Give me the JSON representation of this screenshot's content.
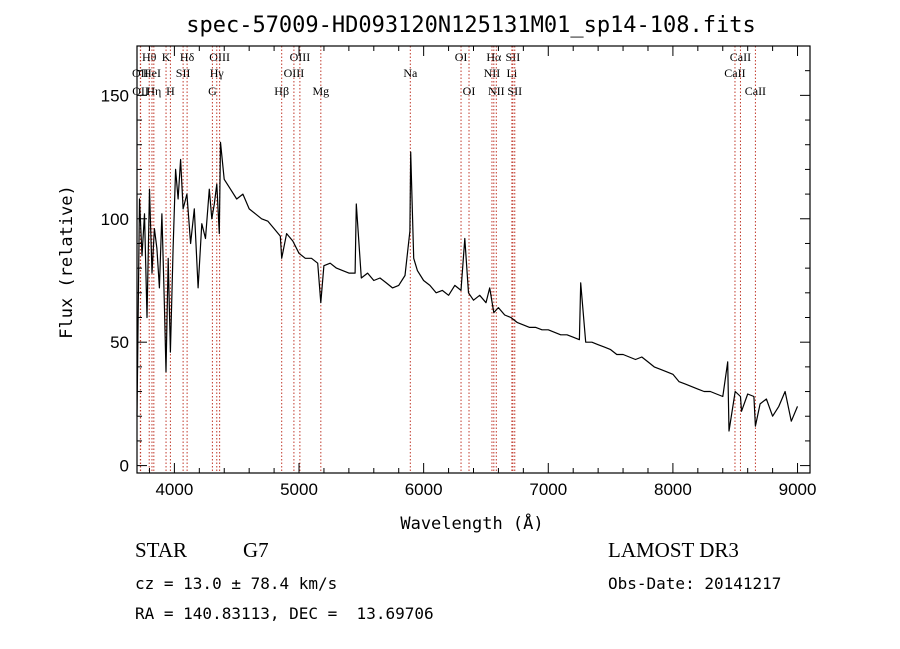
{
  "chart_data": {
    "type": "line",
    "title": "spec-57009-HD093120N125131M01_sp14-108.fits",
    "xlabel": "Wavelength (Å)",
    "ylabel": "Flux (relative)",
    "xlim": [
      3700,
      9100
    ],
    "ylim": [
      -3,
      170
    ],
    "xticks": [
      4000,
      5000,
      6000,
      7000,
      8000,
      9000
    ],
    "yticks": [
      0,
      50,
      100,
      150
    ],
    "series": [
      {
        "name": "spectrum",
        "x": [
          3700,
          3720,
          3740,
          3760,
          3780,
          3800,
          3820,
          3840,
          3860,
          3880,
          3900,
          3920,
          3933,
          3950,
          3968,
          3990,
          4010,
          4030,
          4050,
          4070,
          4100,
          4130,
          4160,
          4190,
          4220,
          4250,
          4280,
          4300,
          4320,
          4340,
          4360,
          4370,
          4400,
          4450,
          4500,
          4550,
          4600,
          4650,
          4700,
          4750,
          4800,
          4850,
          4861,
          4900,
          4950,
          5000,
          5050,
          5100,
          5150,
          5175,
          5200,
          5250,
          5300,
          5350,
          5400,
          5450,
          5460,
          5500,
          5550,
          5600,
          5650,
          5700,
          5750,
          5800,
          5850,
          5890,
          5896,
          5920,
          5950,
          6000,
          6050,
          6100,
          6150,
          6200,
          6250,
          6300,
          6330,
          6360,
          6400,
          6450,
          6500,
          6530,
          6563,
          6600,
          6650,
          6700,
          6750,
          6800,
          6850,
          6900,
          6950,
          7000,
          7050,
          7100,
          7150,
          7200,
          7250,
          7260,
          7300,
          7350,
          7400,
          7450,
          7500,
          7550,
          7600,
          7650,
          7700,
          7750,
          7800,
          7850,
          7900,
          7950,
          8000,
          8050,
          8100,
          8150,
          8200,
          8250,
          8300,
          8350,
          8400,
          8440,
          8450,
          8500,
          8542,
          8550,
          8600,
          8650,
          8662,
          8700,
          8750,
          8800,
          8850,
          8900,
          8950,
          9000
        ],
        "y": [
          20,
          108,
          85,
          102,
          60,
          112,
          78,
          96,
          88,
          72,
          102,
          65,
          38,
          84,
          46,
          88,
          120,
          108,
          124,
          104,
          110,
          90,
          104,
          72,
          98,
          92,
          112,
          100,
          106,
          114,
          94,
          131,
          116,
          112,
          108,
          110,
          104,
          102,
          100,
          99,
          96,
          93,
          84,
          94,
          91,
          86,
          84,
          84,
          82,
          66,
          81,
          82,
          80,
          79,
          78,
          78,
          106,
          76,
          78,
          75,
          76,
          74,
          72,
          73,
          77,
          95,
          127,
          84,
          79,
          75,
          73,
          70,
          71,
          69,
          73,
          71,
          92,
          70,
          67,
          69,
          66,
          72,
          62,
          64,
          61,
          60,
          58,
          57,
          56,
          56,
          55,
          55,
          54,
          53,
          53,
          52,
          51,
          74,
          50,
          50,
          49,
          48,
          47,
          45,
          45,
          44,
          43,
          44,
          42,
          40,
          39,
          38,
          37,
          34,
          33,
          32,
          31,
          30,
          30,
          29,
          28,
          42,
          14,
          30,
          28,
          22,
          29,
          28,
          16,
          25,
          27,
          20,
          24,
          30,
          18,
          24
        ]
      }
    ],
    "line_markers": [
      {
        "label": "Hθ",
        "wavelength": 3798,
        "row": 1
      },
      {
        "label": "OII",
        "wavelength": 3727,
        "row": 2
      },
      {
        "label": "OII",
        "wavelength": 3729,
        "row": 3
      },
      {
        "label": "HeI",
        "wavelength": 3820,
        "row": 2
      },
      {
        "label": "Hη",
        "wavelength": 3835,
        "row": 3
      },
      {
        "label": "K",
        "wavelength": 3933,
        "row": 1
      },
      {
        "label": "SII",
        "wavelength": 4070,
        "row": 2
      },
      {
        "label": "H",
        "wavelength": 3968,
        "row": 3
      },
      {
        "label": "Hδ",
        "wavelength": 4102,
        "row": 1
      },
      {
        "label": "OIII",
        "wavelength": 4363,
        "row": 1
      },
      {
        "label": "Hγ",
        "wavelength": 4340,
        "row": 2
      },
      {
        "label": "G",
        "wavelength": 4305,
        "row": 3
      },
      {
        "label": "OIII",
        "wavelength": 5007,
        "row": 1
      },
      {
        "label": "OIII",
        "wavelength": 4959,
        "row": 2
      },
      {
        "label": "Hβ",
        "wavelength": 4861,
        "row": 3
      },
      {
        "label": "Mg",
        "wavelength": 5175,
        "row": 3
      },
      {
        "label": "Na",
        "wavelength": 5893,
        "row": 2
      },
      {
        "label": "OI",
        "wavelength": 6300,
        "row": 1
      },
      {
        "label": "OI",
        "wavelength": 6364,
        "row": 3
      },
      {
        "label": "Hα",
        "wavelength": 6563,
        "row": 1
      },
      {
        "label": "NII",
        "wavelength": 6548,
        "row": 2
      },
      {
        "label": "NII",
        "wavelength": 6583,
        "row": 3
      },
      {
        "label": "SII",
        "wavelength": 6716,
        "row": 1
      },
      {
        "label": "Li",
        "wavelength": 6708,
        "row": 2
      },
      {
        "label": "SII",
        "wavelength": 6731,
        "row": 3
      },
      {
        "label": "CaII",
        "wavelength": 8542,
        "row": 1
      },
      {
        "label": "CaII",
        "wavelength": 8498,
        "row": 2
      },
      {
        "label": "CaII",
        "wavelength": 8662,
        "row": 3
      }
    ]
  },
  "info": {
    "object_class": "STAR",
    "subclass": "G7",
    "survey": "LAMOST DR3",
    "cz_line": "cz = 13.0 ± 78.4 km/s",
    "obs_date": "Obs-Date: 20141217",
    "radec_line": "RA = 140.83113, DEC =  13.69706"
  },
  "colors": {
    "line_marker": "#c0392b",
    "spectrum": "#000000"
  }
}
